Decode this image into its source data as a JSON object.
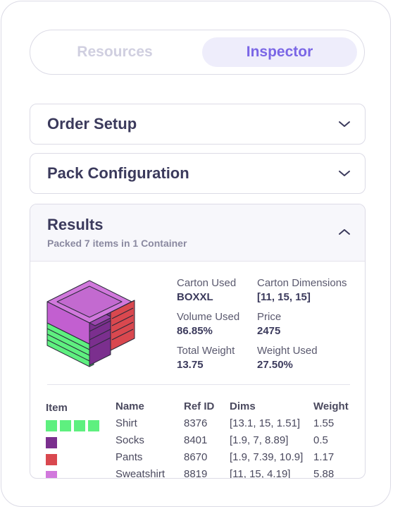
{
  "tabs": [
    {
      "label": "Resources",
      "active": false
    },
    {
      "label": "Inspector",
      "active": true
    }
  ],
  "sections": {
    "order_setup": {
      "title": "Order Setup",
      "expanded": false
    },
    "pack_configuration": {
      "title": "Pack Configuration",
      "expanded": false
    },
    "results": {
      "title": "Results",
      "subtitle": "Packed 7 items in 1 Container",
      "expanded": true
    }
  },
  "stats": {
    "carton_used": {
      "label": "Carton Used",
      "value": "BOXXL"
    },
    "carton_dimensions": {
      "label": "Carton Dimensions",
      "value": "[11, 15, 15]"
    },
    "volume_used": {
      "label": "Volume Used",
      "value": "86.85%"
    },
    "price": {
      "label": "Price",
      "value": "2475"
    },
    "total_weight": {
      "label": "Total Weight",
      "value": "13.75"
    },
    "weight_used": {
      "label": "Weight Used",
      "value": "27.50%"
    }
  },
  "table": {
    "headers": {
      "item": "Item",
      "name": "Name",
      "ref_id": "Ref ID",
      "dims": "Dims",
      "weight": "Weight"
    },
    "rows": [
      {
        "name": "Shirt",
        "ref_id": "8376",
        "dims": "[13.1, 15, 1.51]",
        "weight": "1.55",
        "color": "#5ef07f",
        "count": 4
      },
      {
        "name": "Socks",
        "ref_id": "8401",
        "dims": "[1.9, 7, 8.89]",
        "weight": "0.5",
        "color": "#7b2f8e",
        "count": 1
      },
      {
        "name": "Pants",
        "ref_id": "8670",
        "dims": "[1.9, 7.39, 10.9]",
        "weight": "1.17",
        "color": "#d9484f",
        "count": 1
      },
      {
        "name": "Sweatshirt",
        "ref_id": "8819",
        "dims": "[11, 15, 4.19]",
        "weight": "5.88",
        "color": "#d178dc",
        "count": 1
      }
    ]
  },
  "colors": {
    "accent": "#7a66e6",
    "accent_bg": "#eeedfb",
    "border": "#dcdbe6"
  },
  "icons": {
    "collapsed": "chevron-down-icon",
    "expanded": "chevron-up-icon"
  }
}
